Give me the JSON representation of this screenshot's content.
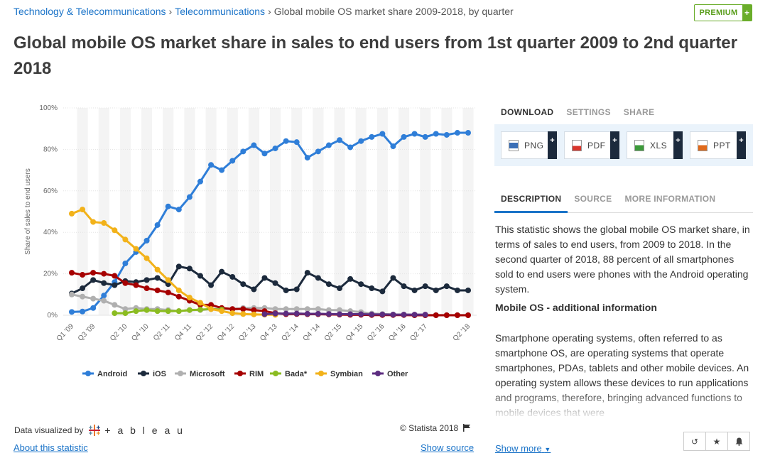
{
  "breadcrumb": {
    "item1": "Technology & Telecommunications",
    "item2": "Telecommunications",
    "current": "Global mobile OS market share 2009-2018, by quarter",
    "separator": "›"
  },
  "premium": {
    "label": "PREMIUM",
    "plus": "+"
  },
  "title": "Global mobile OS market share in sales to end users from 1st quarter 2009 to 2nd quarter 2018",
  "download_tabs": [
    "DOWNLOAD",
    "SETTINGS",
    "SHARE"
  ],
  "download_buttons": [
    {
      "label": "PNG",
      "icon": "png-file-icon",
      "color": "#3b6fb6"
    },
    {
      "label": "PDF",
      "icon": "pdf-file-icon",
      "color": "#d9352c"
    },
    {
      "label": "XLS",
      "icon": "xls-file-icon",
      "color": "#3c9a3a"
    },
    {
      "label": "PPT",
      "icon": "ppt-file-icon",
      "color": "#e06a1b"
    }
  ],
  "info_tabs": [
    "DESCRIPTION",
    "SOURCE",
    "MORE INFORMATION"
  ],
  "description": "This statistic shows the global mobile OS market share, in terms of sales to end users, from 2009 to 2018. In the second quarter of 2018, 88 percent of all smartphones sold to end users were phones with the Android operating system.",
  "subheading": "Mobile OS - additional information",
  "description2": "Smartphone operating systems, often referred to as smartphone OS, are operating systems that operate smartphones, PDAs, tablets and other mobile devices. An operating system allows these devices to run applications and programs, therefore, bringing advanced functions to mobile devices that were",
  "show_more": "Show more",
  "footer": {
    "data_visualized_by": "Data visualized by",
    "tableau": "+ a b l e a u",
    "copyright": "© Statista 2018",
    "about": "About this statistic",
    "show_source": "Show source"
  },
  "colors": {
    "accent": "#1a73c8",
    "premium_green": "#6aad2a"
  },
  "chart_data": {
    "type": "line",
    "title": "",
    "ylabel": "Share of sales to end users",
    "xlabel": "",
    "ylim": [
      0,
      100
    ],
    "yticks": [
      "0%",
      "20%",
      "40%",
      "60%",
      "80%",
      "100%"
    ],
    "grid": "alternating vertical bands",
    "legend_position": "bottom",
    "categories": [
      "Q1 '09",
      "Q2 '09",
      "Q3 '09",
      "Q4 '09",
      "Q1 '10",
      "Q2 '10",
      "Q3 '10",
      "Q4 '10",
      "Q1 '11",
      "Q2 '11",
      "Q3 '11",
      "Q4 '11",
      "Q1 '12",
      "Q2 '12",
      "Q3 '12",
      "Q4 '12",
      "Q1 '13",
      "Q2 '13",
      "Q3 '13",
      "Q4 '13",
      "Q1 '14",
      "Q2 '14",
      "Q3 '14",
      "Q4 '14",
      "Q1 '15",
      "Q2 '15",
      "Q3 '15",
      "Q4 '15",
      "Q1 '16",
      "Q2 '16",
      "Q3 '16",
      "Q4 '16",
      "Q1 '17",
      "Q2 '17",
      "Q3 '17",
      "Q4 '17",
      "Q1 '18",
      "Q2 '18"
    ],
    "xtick_labels": [
      "Q1 '09",
      "Q3 '09",
      "Q2 '10",
      "Q4 '10",
      "Q2 '11",
      "Q4 '11",
      "Q2 '12",
      "Q4 '12",
      "Q2 '13",
      "Q4 '13",
      "Q2 '14",
      "Q4 '14",
      "Q2 '15",
      "Q4 '15",
      "Q2 '16",
      "Q4 '16",
      "Q2 '17",
      "Q2 '18"
    ],
    "series": [
      {
        "name": "Android",
        "color": "#2f7ed8",
        "values": [
          1.6,
          1.8,
          3.5,
          9.5,
          16,
          25,
          30.5,
          36,
          43.5,
          52.5,
          51,
          57,
          64.5,
          72.5,
          70,
          74.5,
          79,
          82,
          78,
          80.5,
          84,
          83.5,
          76,
          79,
          82,
          84.5,
          81,
          84,
          86,
          87.5,
          81.5,
          86,
          87.5,
          86,
          87.5,
          87,
          88,
          88
        ]
      },
      {
        "name": "iOS",
        "color": "#1c2a3c",
        "values": [
          10.5,
          13,
          17,
          15.5,
          14.5,
          16.5,
          16,
          17,
          18,
          15,
          23.5,
          22.5,
          19,
          14.5,
          21,
          18.5,
          15,
          12.5,
          18,
          15.5,
          12,
          12.5,
          20.5,
          18,
          15,
          13,
          17.5,
          15,
          13,
          11.5,
          18,
          14,
          12,
          14,
          12,
          14,
          12,
          12
        ]
      },
      {
        "name": "Microsoft",
        "color": "#b0b0b0",
        "values": [
          10,
          9,
          8,
          7,
          5,
          3,
          3.5,
          3,
          3,
          2.5,
          2,
          2.5,
          2.5,
          3,
          3,
          3,
          3.5,
          3.5,
          3.5,
          3,
          3,
          3,
          3,
          3,
          2.5,
          2.5,
          2,
          1.5,
          0.8,
          0.6,
          0.4,
          0.3,
          0.2,
          0.1,
          0.1,
          0.1,
          0.1,
          0.1
        ]
      },
      {
        "name": "RIM",
        "color": "#a60000",
        "values": [
          20.5,
          19.5,
          20.5,
          20,
          19,
          15.5,
          14.5,
          13,
          12,
          11,
          9,
          7,
          5,
          5,
          3.5,
          3,
          3,
          2.5,
          2,
          1,
          0.5,
          0.6,
          0.5,
          0.5,
          0.4,
          0.3,
          0.2,
          0.2,
          0.1,
          0.1,
          0.1,
          0.1,
          0,
          0,
          0,
          0,
          0,
          0
        ]
      },
      {
        "name": "Bada*",
        "color": "#8bbc21",
        "values": [
          null,
          null,
          null,
          null,
          1,
          1,
          2,
          2.5,
          2,
          2,
          2,
          2.5,
          2.7,
          3,
          2.7,
          null,
          null,
          null,
          null,
          null,
          null,
          null,
          null,
          null,
          null,
          null,
          null,
          null,
          null,
          null,
          null,
          null,
          null,
          null,
          null,
          null,
          null,
          null
        ]
      },
      {
        "name": "Symbian",
        "color": "#f2b21a",
        "values": [
          49,
          51,
          45,
          44.5,
          41,
          36.5,
          32,
          27.5,
          22,
          17,
          12,
          8.5,
          6,
          3,
          2,
          1,
          0.6,
          0.4,
          0.3,
          0.2,
          null,
          null,
          null,
          null,
          null,
          null,
          null,
          null,
          null,
          null,
          null,
          null,
          null,
          null,
          null,
          null,
          null,
          null
        ]
      },
      {
        "name": "Other",
        "color": "#5c2d80",
        "values": [
          null,
          null,
          null,
          null,
          null,
          null,
          null,
          null,
          null,
          null,
          null,
          null,
          null,
          null,
          null,
          null,
          null,
          null,
          0.5,
          0.8,
          0.8,
          0.8,
          0.7,
          0.7,
          0.6,
          0.5,
          0.5,
          0.5,
          0.4,
          0.4,
          0.3,
          0.3,
          0.3,
          0.3,
          null,
          null,
          null,
          null
        ]
      }
    ]
  }
}
